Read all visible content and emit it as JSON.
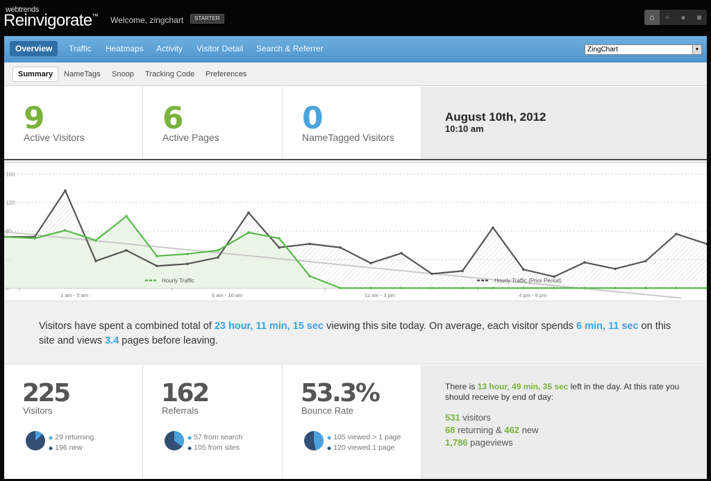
{
  "header": {
    "logo_small": "webtrends",
    "logo_big": "Reinvigorate",
    "logo_tm": "™",
    "welcome": "Welcome, zingchart",
    "plan_badge": "STARTER",
    "icons": [
      "home-icon",
      "plus-icon",
      "users-icon",
      "lock-icon"
    ]
  },
  "nav": {
    "items": [
      "Overview",
      "Traffic",
      "Heatmaps",
      "Activity",
      "Visitor Detail",
      "Search & Referrer"
    ],
    "active": "Overview",
    "site_select": "ZingChart"
  },
  "subnav": {
    "items": [
      "Summary",
      "NameTags",
      "Snoop",
      "Tracking Code",
      "Preferences"
    ],
    "active": "Summary"
  },
  "stats": {
    "active_visitors": {
      "value": "9",
      "label": "Active Visitors"
    },
    "active_pages": {
      "value": "6",
      "label": "Active Pages"
    },
    "nametagged": {
      "value": "0",
      "label": "NameTagged Visitors"
    },
    "date": "August 10th, 2012",
    "time": "10:10 am"
  },
  "chart_data": {
    "type": "line",
    "ylim": [
      0,
      160
    ],
    "y_ticks": [
      "0",
      "40",
      "80",
      "120",
      "160"
    ],
    "x_labels": [
      "1 am - 5 am",
      "6 am - 10 am",
      "11 am - 3 pm",
      "4 pm - 8 pm"
    ],
    "series": [
      {
        "name": "Hourly Traffic",
        "color": "#58b94a",
        "values": [
          72,
          70,
          81,
          67,
          101,
          45,
          48,
          53,
          78,
          70,
          17,
          0,
          0,
          0,
          0,
          0,
          0,
          0,
          0,
          0,
          0,
          0,
          0,
          0
        ]
      },
      {
        "name": "Hourly Traffic (Prior Period)",
        "color": "#555555",
        "values": [
          72,
          72,
          137,
          38,
          53,
          31,
          34,
          43,
          106,
          57,
          62,
          57,
          35,
          49,
          20,
          24,
          85,
          26,
          16,
          36,
          27,
          38,
          76,
          62
        ]
      }
    ],
    "trend": {
      "from": 79,
      "to": -14
    }
  },
  "summary": {
    "p1": "Visitors have spent a combined total of ",
    "total_time": "23 hour, 11 min, 15 sec",
    "p2": " viewing this site today. On average, each visitor spends ",
    "avg_time": "6 min, 11 sec",
    "p3": " on this site and views ",
    "pages": "3.4",
    "p4": " pages before leaving."
  },
  "kpis": {
    "visitors": {
      "value": "225",
      "label": "Visitors",
      "l1": "29 returning",
      "l2": "196 new",
      "fraction": 0.129
    },
    "referrals": {
      "value": "162",
      "label": "Referrals",
      "l1": "57 from search",
      "l2": "105 from sites",
      "fraction": 0.352
    },
    "bounce": {
      "value": "53.3%",
      "label": "Bounce Rate",
      "l1": "105 viewed > 1 page",
      "l2": "120 viewed 1 page",
      "fraction": 0.467
    }
  },
  "projection": {
    "intro1": "There is ",
    "time_left": "13 hour, 49 min, 35 sec",
    "intro2": " left in the day. At this rate you should receive by end of day:",
    "visitors_num": "531",
    "visitors_txt": " visitors",
    "returning_num": "68",
    "returning_txt": " returning & ",
    "new_num": "462",
    "new_txt": " new",
    "pageviews_num": "1,786",
    "pageviews_txt": " pageviews"
  },
  "colors": {
    "nav_blue": "#5aa0d6",
    "green": "#7ab33c",
    "blue": "#4ba3dc",
    "pie_dark": "#334e73",
    "pie_light": "#4ba3dc"
  }
}
